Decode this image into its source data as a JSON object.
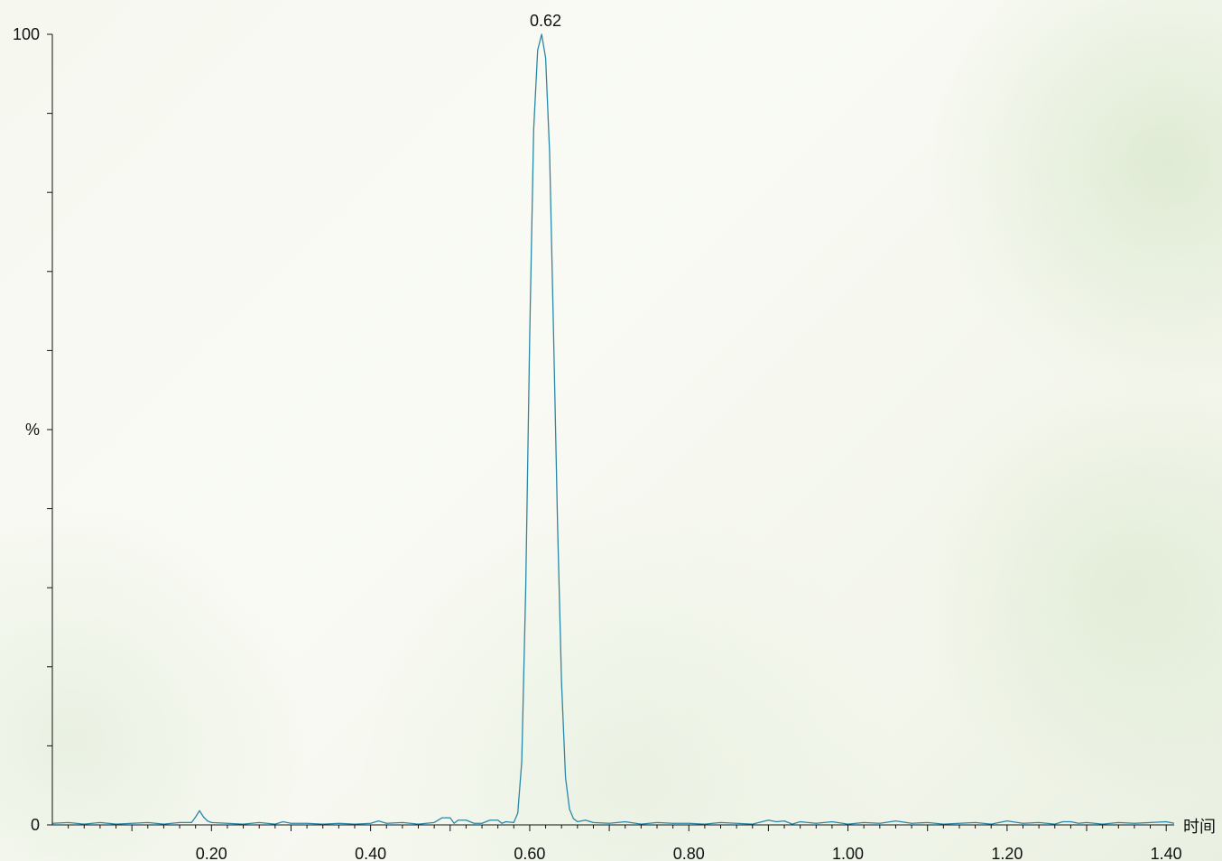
{
  "chart_data": {
    "type": "line",
    "xlabel": "时间",
    "ylabel": "%",
    "xlim": [
      0.0,
      1.41
    ],
    "ylim": [
      0,
      100
    ],
    "y_ticks": [
      {
        "value": 0,
        "label": "0"
      },
      {
        "value": 50,
        "label": "%"
      },
      {
        "value": 100,
        "label": "100"
      }
    ],
    "x_ticks": [
      {
        "value": 0.2,
        "label": "0.20"
      },
      {
        "value": 0.4,
        "label": "0.40"
      },
      {
        "value": 0.6,
        "label": "0.60"
      },
      {
        "value": 0.8,
        "label": "0.80"
      },
      {
        "value": 1.0,
        "label": "1.00"
      },
      {
        "value": 1.2,
        "label": "1.20"
      },
      {
        "value": 1.4,
        "label": "1.40"
      }
    ],
    "annotations": [
      {
        "x": 0.62,
        "y": 100,
        "label": "0.62"
      }
    ],
    "grid": false,
    "series": [
      {
        "color": "#2b87a8",
        "points": [
          [
            0.0,
            0.2
          ],
          [
            0.02,
            0.3
          ],
          [
            0.04,
            0.1
          ],
          [
            0.06,
            0.3
          ],
          [
            0.08,
            0.1
          ],
          [
            0.1,
            0.2
          ],
          [
            0.12,
            0.3
          ],
          [
            0.14,
            0.1
          ],
          [
            0.16,
            0.3
          ],
          [
            0.175,
            0.3
          ],
          [
            0.18,
            1.0
          ],
          [
            0.185,
            1.8
          ],
          [
            0.19,
            1.0
          ],
          [
            0.195,
            0.5
          ],
          [
            0.2,
            0.3
          ],
          [
            0.22,
            0.2
          ],
          [
            0.24,
            0.1
          ],
          [
            0.26,
            0.3
          ],
          [
            0.28,
            0.1
          ],
          [
            0.29,
            0.4
          ],
          [
            0.3,
            0.2
          ],
          [
            0.32,
            0.2
          ],
          [
            0.34,
            0.1
          ],
          [
            0.36,
            0.2
          ],
          [
            0.38,
            0.1
          ],
          [
            0.4,
            0.2
          ],
          [
            0.41,
            0.5
          ],
          [
            0.42,
            0.2
          ],
          [
            0.44,
            0.3
          ],
          [
            0.46,
            0.1
          ],
          [
            0.48,
            0.3
          ],
          [
            0.49,
            0.9
          ],
          [
            0.5,
            0.9
          ],
          [
            0.505,
            0.2
          ],
          [
            0.51,
            0.6
          ],
          [
            0.52,
            0.6
          ],
          [
            0.53,
            0.2
          ],
          [
            0.54,
            0.2
          ],
          [
            0.55,
            0.6
          ],
          [
            0.56,
            0.6
          ],
          [
            0.565,
            0.2
          ],
          [
            0.57,
            0.4
          ],
          [
            0.58,
            0.3
          ],
          [
            0.585,
            1.5
          ],
          [
            0.59,
            8
          ],
          [
            0.595,
            30
          ],
          [
            0.6,
            62
          ],
          [
            0.605,
            88
          ],
          [
            0.61,
            98
          ],
          [
            0.615,
            100
          ],
          [
            0.62,
            97
          ],
          [
            0.625,
            85
          ],
          [
            0.63,
            62
          ],
          [
            0.635,
            38
          ],
          [
            0.64,
            18
          ],
          [
            0.645,
            6
          ],
          [
            0.65,
            2
          ],
          [
            0.655,
            0.8
          ],
          [
            0.66,
            0.4
          ],
          [
            0.67,
            0.6
          ],
          [
            0.68,
            0.3
          ],
          [
            0.7,
            0.2
          ],
          [
            0.72,
            0.4
          ],
          [
            0.74,
            0.1
          ],
          [
            0.76,
            0.3
          ],
          [
            0.78,
            0.2
          ],
          [
            0.8,
            0.2
          ],
          [
            0.82,
            0.1
          ],
          [
            0.84,
            0.3
          ],
          [
            0.86,
            0.2
          ],
          [
            0.88,
            0.1
          ],
          [
            0.9,
            0.6
          ],
          [
            0.91,
            0.4
          ],
          [
            0.92,
            0.5
          ],
          [
            0.93,
            0.1
          ],
          [
            0.94,
            0.4
          ],
          [
            0.96,
            0.2
          ],
          [
            0.98,
            0.4
          ],
          [
            1.0,
            0.1
          ],
          [
            1.02,
            0.3
          ],
          [
            1.04,
            0.2
          ],
          [
            1.06,
            0.5
          ],
          [
            1.08,
            0.2
          ],
          [
            1.1,
            0.3
          ],
          [
            1.12,
            0.1
          ],
          [
            1.14,
            0.2
          ],
          [
            1.16,
            0.3
          ],
          [
            1.18,
            0.1
          ],
          [
            1.2,
            0.5
          ],
          [
            1.22,
            0.2
          ],
          [
            1.24,
            0.3
          ],
          [
            1.26,
            0.1
          ],
          [
            1.27,
            0.4
          ],
          [
            1.28,
            0.4
          ],
          [
            1.29,
            0.2
          ],
          [
            1.3,
            0.3
          ],
          [
            1.32,
            0.1
          ],
          [
            1.34,
            0.3
          ],
          [
            1.36,
            0.2
          ],
          [
            1.38,
            0.3
          ],
          [
            1.4,
            0.4
          ],
          [
            1.41,
            0.2
          ]
        ]
      }
    ]
  }
}
